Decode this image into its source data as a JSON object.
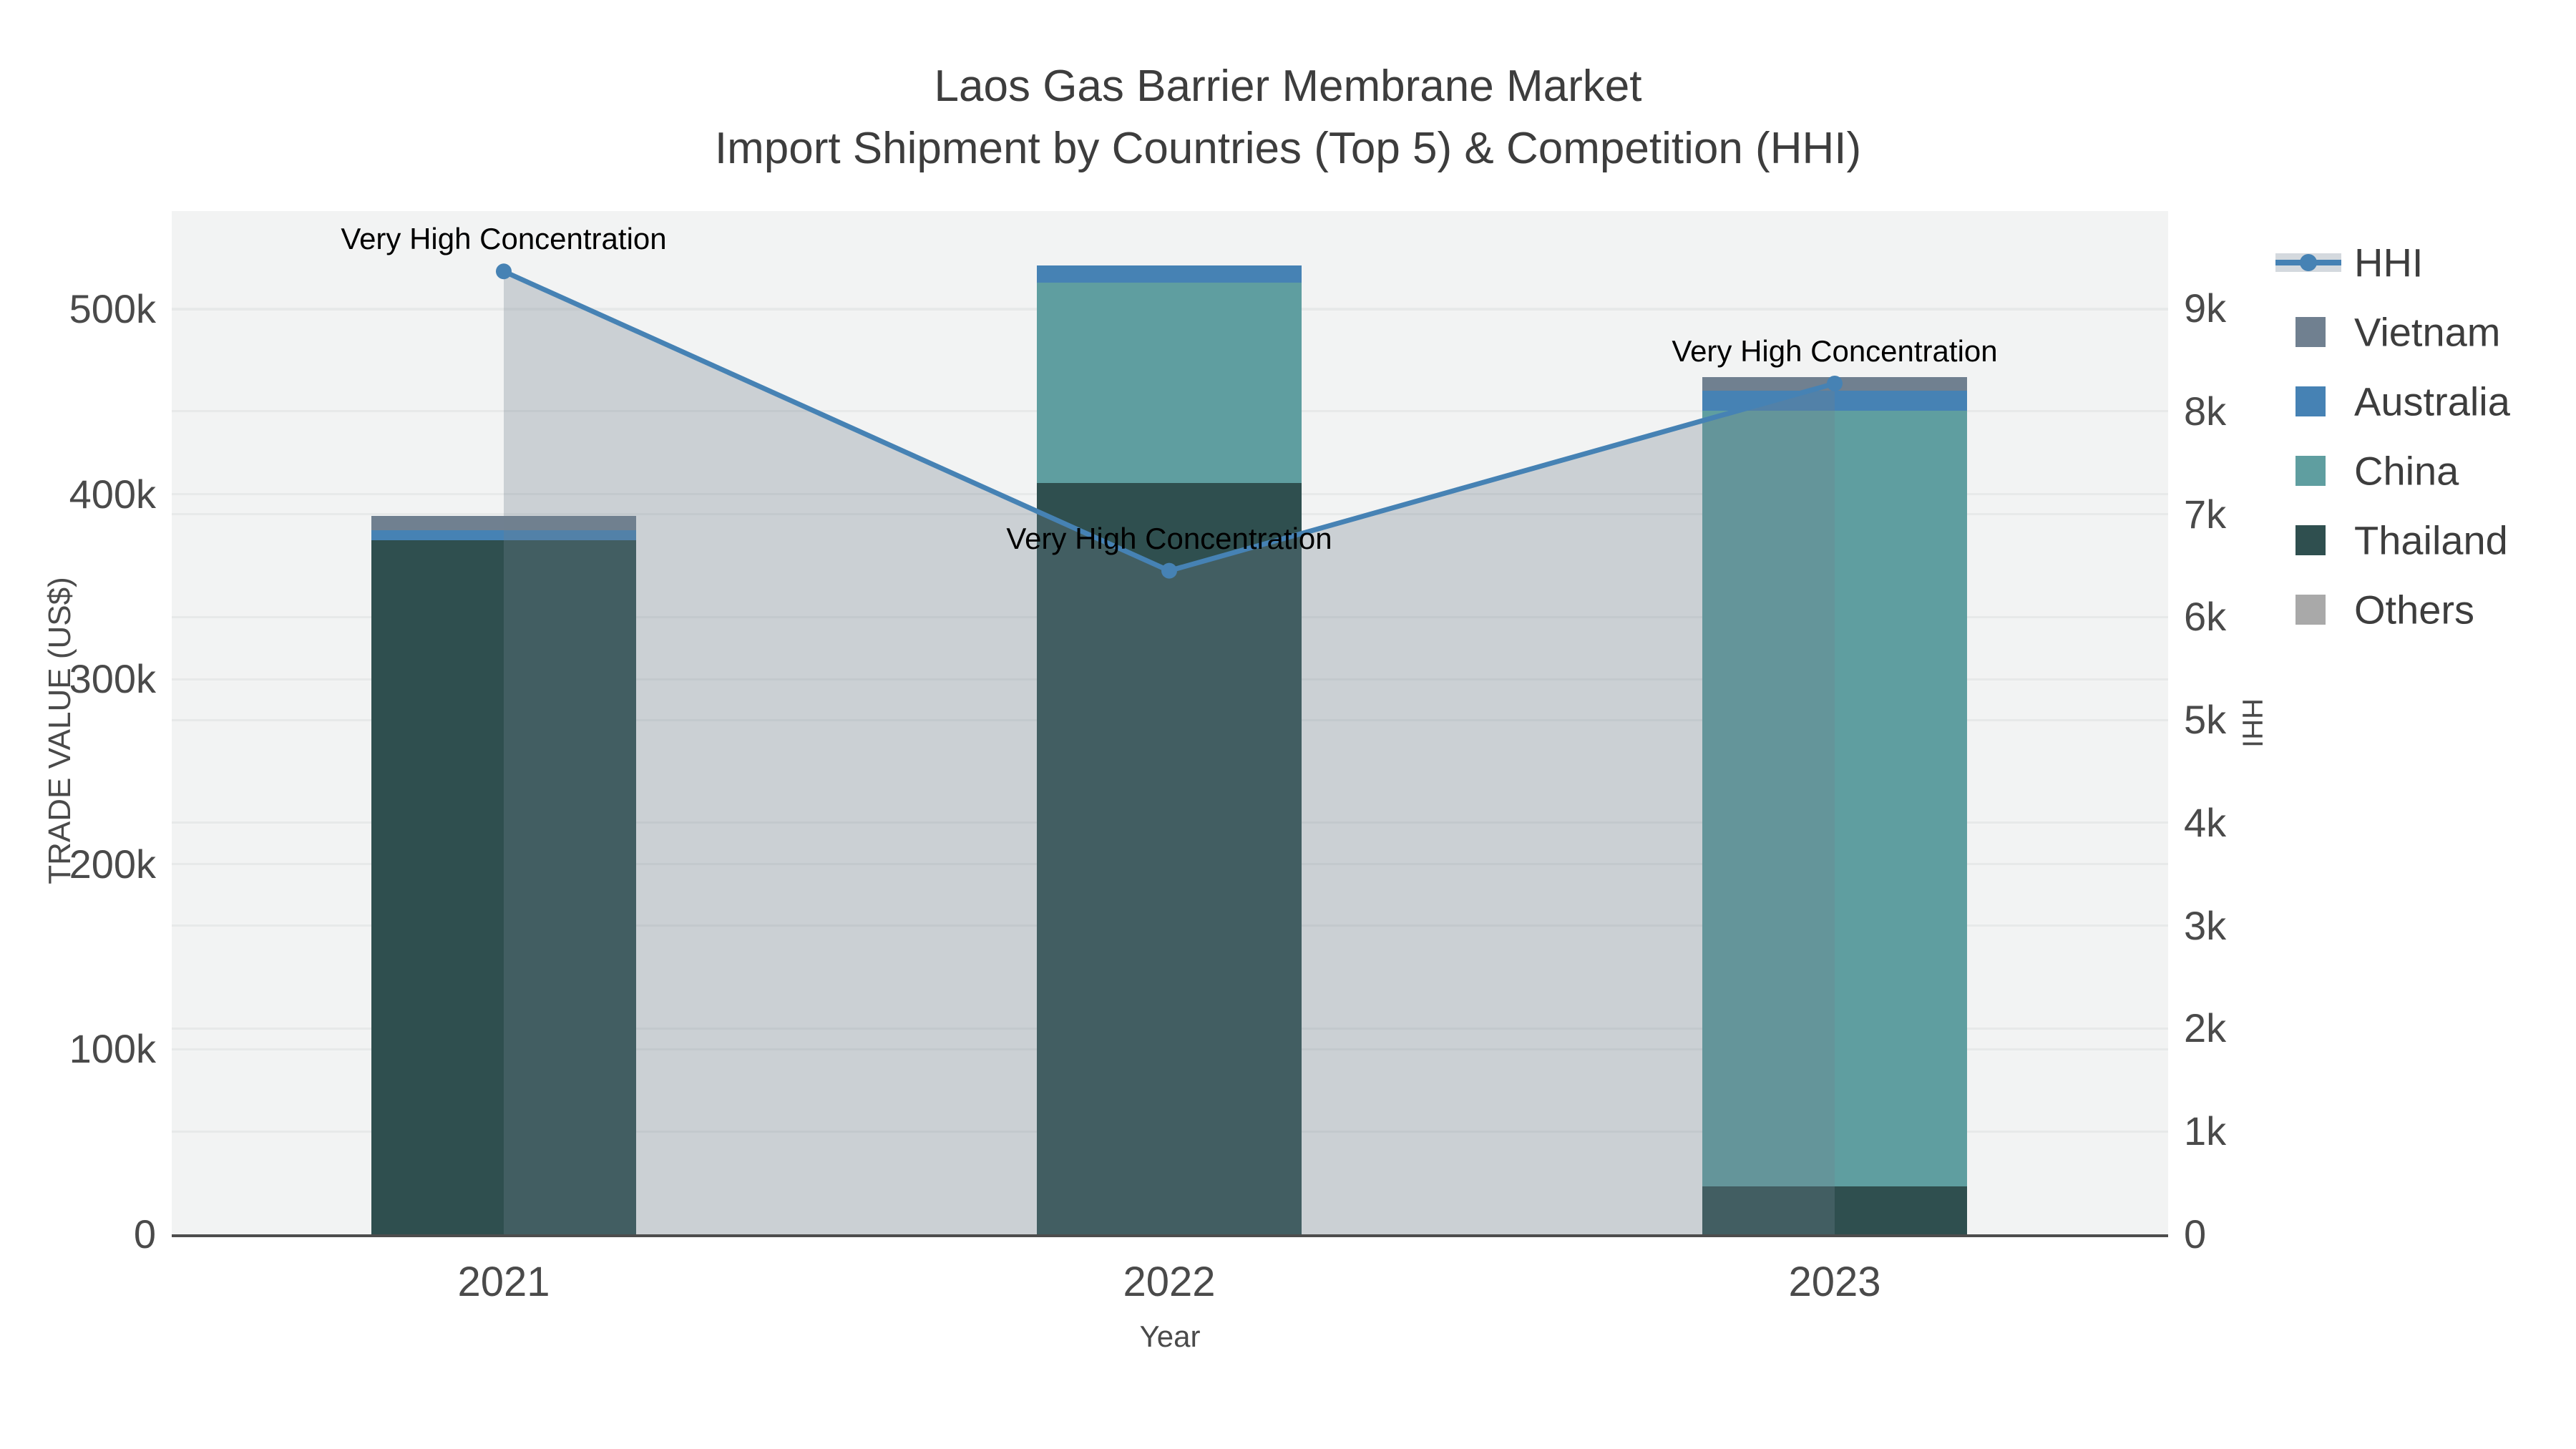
{
  "title": {
    "line1": "Laos Gas Barrier Membrane Market",
    "line2": "Import Shipment by Countries (Top 5) & Competition (HHI)"
  },
  "chart_data": {
    "type": "bar",
    "subtype": "stacked-bars-with-line-overlay",
    "categories": [
      "2021",
      "2022",
      "2023"
    ],
    "series": [
      {
        "name": "Vietnam",
        "color": "#708090",
        "values": [
          7700,
          0,
          7300
        ]
      },
      {
        "name": "Australia",
        "color": "#4682b4",
        "values": [
          5400,
          9300,
          10800
        ]
      },
      {
        "name": "China",
        "color": "#5f9ea0",
        "values": [
          0,
          108100,
          419300
        ]
      },
      {
        "name": "Thailand",
        "color": "#2f4f4f",
        "values": [
          375000,
          406200,
          25900
        ]
      },
      {
        "name": "Others",
        "color": "#a9a9a9",
        "values": [
          0,
          0,
          0
        ]
      }
    ],
    "stack_order_bottom_to_top": [
      "Thailand",
      "China",
      "Australia",
      "Vietnam",
      "Others"
    ],
    "line_series": {
      "name": "HHI",
      "values": [
        9360,
        6450,
        8270
      ],
      "axis": "right",
      "line_color": "#4682b4",
      "marker_color": "#4682b4",
      "fill_color": "rgba(112,128,144,0.30)",
      "legend_band_color": "#d4d9de"
    },
    "annotations": [
      {
        "text": "Very High Concentration",
        "category_index": 0
      },
      {
        "text": "Very High Concentration",
        "category_index": 1
      },
      {
        "text": "Very High Concentration",
        "category_index": 2
      }
    ],
    "x_axis": {
      "title": "Year"
    },
    "left_axis": {
      "title": "TRADE VALUE (US$)",
      "tick_labels": [
        "0",
        "100k",
        "200k",
        "300k",
        "400k",
        "500k"
      ],
      "tick_values": [
        0,
        100000,
        200000,
        300000,
        400000,
        500000
      ],
      "range": [
        0,
        553000
      ]
    },
    "right_axis": {
      "title": "HHI",
      "tick_labels": [
        "0",
        "1k",
        "2k",
        "3k",
        "4k",
        "5k",
        "6k",
        "7k",
        "8k",
        "9k"
      ],
      "tick_values": [
        0,
        1000,
        2000,
        3000,
        4000,
        5000,
        6000,
        7000,
        8000,
        9000
      ],
      "range": [
        0,
        9960
      ]
    },
    "legend_order": [
      "HHI",
      "Vietnam",
      "Australia",
      "China",
      "Thailand",
      "Others"
    ],
    "plot_bg": "#f2f3f3",
    "grid_color": "#e7e9e9",
    "axis_line_color": "#4d4d4d"
  }
}
